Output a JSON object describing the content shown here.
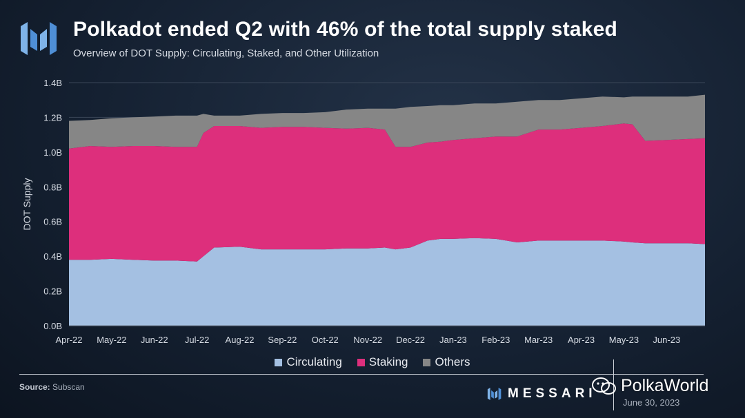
{
  "header": {
    "title": "Polkadot ended Q2 with 46% of the total supply staked",
    "subtitle": "Overview of DOT Supply: Circulating, Staked, and Other Utilization"
  },
  "footer": {
    "source_label": "Source:",
    "source_value": "Subscan",
    "brand": "MESSARI",
    "date": "June 30, 2023",
    "watermark": "PolkaWorld"
  },
  "colors": {
    "circulating": "#a4c0e2",
    "staking": "#dd2f7c",
    "others": "#868686",
    "grid": "#3a4658",
    "axis_text": "#d6dbe3"
  },
  "chart_data": {
    "type": "area",
    "stacked": true,
    "title": "Polkadot ended Q2 with 46% of the total supply staked",
    "subtitle": "Overview of DOT Supply: Circulating, Staked, and Other Utilization",
    "xlabel": "",
    "ylabel": "DOT Supply",
    "ylim": [
      0,
      1.4
    ],
    "y_unit": "B",
    "yticks": [
      "0.0B",
      "0.2B",
      "0.4B",
      "0.6B",
      "0.8B",
      "1.0B",
      "1.2B",
      "1.4B"
    ],
    "x_tick_labels": [
      "Apr-22",
      "May-22",
      "Jun-22",
      "Jul-22",
      "Aug-22",
      "Sep-22",
      "Oct-22",
      "Nov-22",
      "Dec-22",
      "Jan-23",
      "Feb-23",
      "Mar-23",
      "Apr-23",
      "May-23",
      "Jun-23"
    ],
    "x": [
      0,
      0.5,
      1,
      1.5,
      2,
      2.5,
      3,
      3.15,
      3.4,
      4,
      4.5,
      5,
      5.5,
      6,
      6.5,
      7,
      7.4,
      7.65,
      8,
      8.4,
      8.7,
      9,
      9.5,
      10,
      10.5,
      11,
      11.5,
      12,
      12.5,
      13,
      13.2,
      13.5,
      14,
      14.5,
      14.9
    ],
    "series": [
      {
        "name": "Circulating",
        "values": [
          0.38,
          0.38,
          0.385,
          0.38,
          0.375,
          0.375,
          0.37,
          0.4,
          0.45,
          0.455,
          0.44,
          0.44,
          0.44,
          0.44,
          0.445,
          0.445,
          0.45,
          0.44,
          0.45,
          0.49,
          0.5,
          0.5,
          0.505,
          0.5,
          0.48,
          0.49,
          0.49,
          0.49,
          0.49,
          0.485,
          0.48,
          0.475,
          0.475,
          0.475,
          0.47
        ]
      },
      {
        "name": "Staking",
        "values": [
          0.64,
          0.655,
          0.645,
          0.655,
          0.66,
          0.655,
          0.66,
          0.71,
          0.7,
          0.695,
          0.7,
          0.705,
          0.705,
          0.7,
          0.69,
          0.695,
          0.68,
          0.59,
          0.58,
          0.565,
          0.56,
          0.57,
          0.575,
          0.59,
          0.61,
          0.64,
          0.64,
          0.65,
          0.66,
          0.68,
          0.68,
          0.59,
          0.595,
          0.6,
          0.61
        ]
      },
      {
        "name": "Others",
        "values": [
          0.16,
          0.15,
          0.165,
          0.165,
          0.17,
          0.18,
          0.18,
          0.11,
          0.06,
          0.06,
          0.08,
          0.08,
          0.08,
          0.09,
          0.11,
          0.11,
          0.12,
          0.22,
          0.23,
          0.21,
          0.21,
          0.2,
          0.2,
          0.19,
          0.2,
          0.17,
          0.17,
          0.17,
          0.17,
          0.15,
          0.16,
          0.255,
          0.25,
          0.245,
          0.25
        ]
      }
    ],
    "legend_position": "bottom",
    "grid": true
  }
}
